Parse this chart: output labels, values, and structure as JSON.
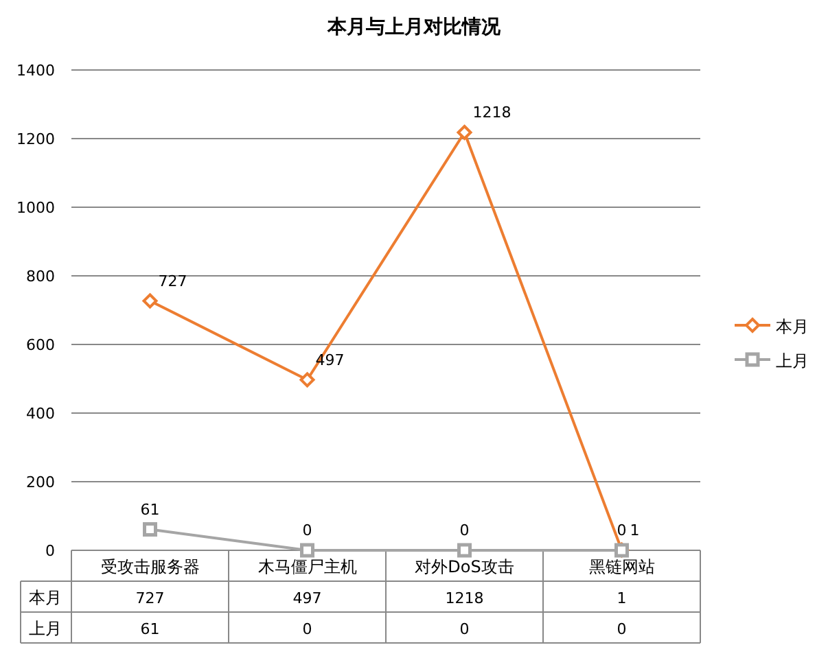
{
  "chart_data": {
    "type": "line",
    "title": "本月与上月对比情况",
    "categories": [
      "受攻击服务器",
      "木马僵尸主机",
      "对外DoS攻击",
      "黑链网站"
    ],
    "series": [
      {
        "name": "本月",
        "color": "#ed7d31",
        "marker": "diamond",
        "values": [
          727,
          497,
          1218,
          1
        ],
        "value_labels": [
          "727",
          "497",
          "1218",
          "1"
        ]
      },
      {
        "name": "上月",
        "color": "#a5a5a5",
        "marker": "square",
        "values": [
          61,
          0,
          0,
          0
        ],
        "value_labels": [
          "61",
          "0",
          "0",
          "0"
        ]
      }
    ],
    "ylim": [
      0,
      1400
    ],
    "yticks": [
      0,
      200,
      400,
      600,
      800,
      1000,
      1200,
      1400
    ],
    "grid": "y",
    "legend": "right"
  }
}
